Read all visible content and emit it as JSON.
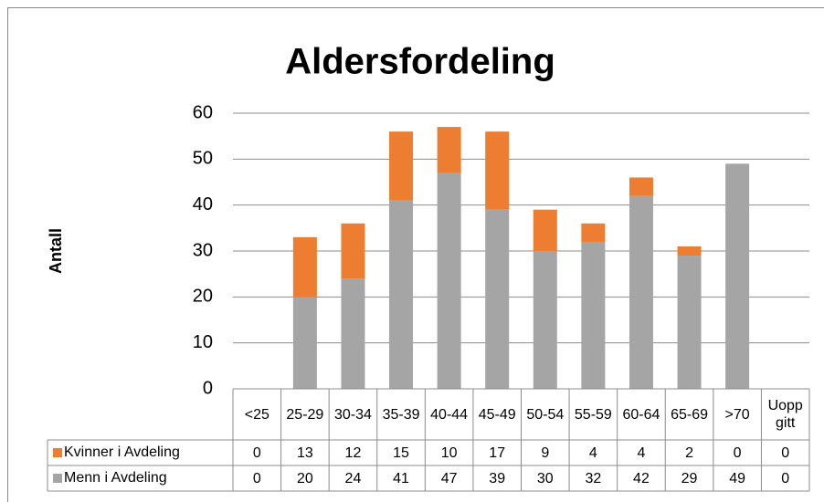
{
  "chart_data": {
    "type": "bar",
    "stacked": true,
    "title": "Aldersfordeling",
    "ylabel": "Antall",
    "categories": [
      "<25",
      "25-29",
      "30-34",
      "35-39",
      "40-44",
      "45-49",
      "50-54",
      "55-59",
      "60-64",
      "65-69",
      ">70",
      "Uoppgitt"
    ],
    "series": [
      {
        "name": "Menn i Avdeling",
        "color": "#a5a5a5",
        "values": [
          0,
          20,
          24,
          41,
          47,
          39,
          30,
          32,
          42,
          29,
          49,
          0
        ]
      },
      {
        "name": "Kvinner i Avdeling",
        "color": "#ed7d31",
        "values": [
          0,
          13,
          12,
          15,
          10,
          17,
          9,
          4,
          4,
          2,
          0,
          0
        ]
      }
    ],
    "ylim": [
      0,
      60
    ],
    "yticks": [
      0,
      10,
      20,
      30,
      40,
      50,
      60
    ],
    "grid": true,
    "data_table": true
  }
}
